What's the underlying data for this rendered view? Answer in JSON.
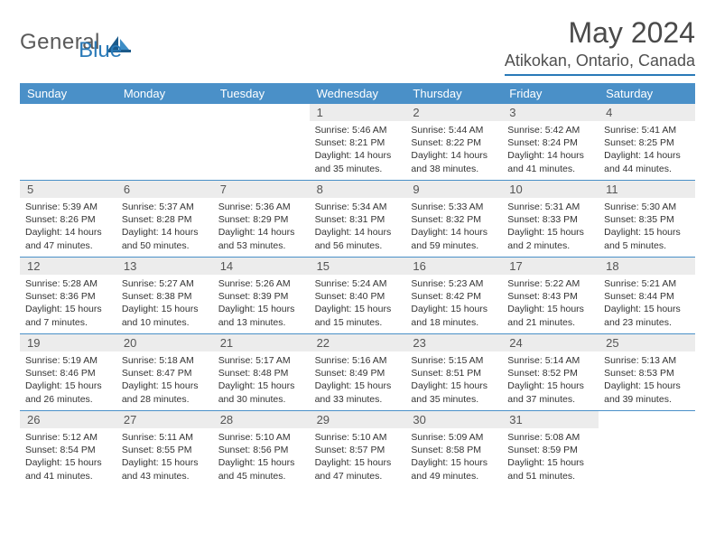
{
  "logo": {
    "text1": "General",
    "text2": "Blue"
  },
  "title": "May 2024",
  "location": "Atikokan, Ontario, Canada",
  "colors": {
    "header_bg": "#4a90c8",
    "header_text": "#ffffff",
    "rule": "#2a7ab8",
    "daynum_bg": "#ececec",
    "text": "#333333"
  },
  "weekdays": [
    "Sunday",
    "Monday",
    "Tuesday",
    "Wednesday",
    "Thursday",
    "Friday",
    "Saturday"
  ],
  "weeks": [
    [
      {
        "n": "",
        "sr": "",
        "ss": "",
        "dl": ""
      },
      {
        "n": "",
        "sr": "",
        "ss": "",
        "dl": ""
      },
      {
        "n": "",
        "sr": "",
        "ss": "",
        "dl": ""
      },
      {
        "n": "1",
        "sr": "Sunrise: 5:46 AM",
        "ss": "Sunset: 8:21 PM",
        "dl": "Daylight: 14 hours and 35 minutes."
      },
      {
        "n": "2",
        "sr": "Sunrise: 5:44 AM",
        "ss": "Sunset: 8:22 PM",
        "dl": "Daylight: 14 hours and 38 minutes."
      },
      {
        "n": "3",
        "sr": "Sunrise: 5:42 AM",
        "ss": "Sunset: 8:24 PM",
        "dl": "Daylight: 14 hours and 41 minutes."
      },
      {
        "n": "4",
        "sr": "Sunrise: 5:41 AM",
        "ss": "Sunset: 8:25 PM",
        "dl": "Daylight: 14 hours and 44 minutes."
      }
    ],
    [
      {
        "n": "5",
        "sr": "Sunrise: 5:39 AM",
        "ss": "Sunset: 8:26 PM",
        "dl": "Daylight: 14 hours and 47 minutes."
      },
      {
        "n": "6",
        "sr": "Sunrise: 5:37 AM",
        "ss": "Sunset: 8:28 PM",
        "dl": "Daylight: 14 hours and 50 minutes."
      },
      {
        "n": "7",
        "sr": "Sunrise: 5:36 AM",
        "ss": "Sunset: 8:29 PM",
        "dl": "Daylight: 14 hours and 53 minutes."
      },
      {
        "n": "8",
        "sr": "Sunrise: 5:34 AM",
        "ss": "Sunset: 8:31 PM",
        "dl": "Daylight: 14 hours and 56 minutes."
      },
      {
        "n": "9",
        "sr": "Sunrise: 5:33 AM",
        "ss": "Sunset: 8:32 PM",
        "dl": "Daylight: 14 hours and 59 minutes."
      },
      {
        "n": "10",
        "sr": "Sunrise: 5:31 AM",
        "ss": "Sunset: 8:33 PM",
        "dl": "Daylight: 15 hours and 2 minutes."
      },
      {
        "n": "11",
        "sr": "Sunrise: 5:30 AM",
        "ss": "Sunset: 8:35 PM",
        "dl": "Daylight: 15 hours and 5 minutes."
      }
    ],
    [
      {
        "n": "12",
        "sr": "Sunrise: 5:28 AM",
        "ss": "Sunset: 8:36 PM",
        "dl": "Daylight: 15 hours and 7 minutes."
      },
      {
        "n": "13",
        "sr": "Sunrise: 5:27 AM",
        "ss": "Sunset: 8:38 PM",
        "dl": "Daylight: 15 hours and 10 minutes."
      },
      {
        "n": "14",
        "sr": "Sunrise: 5:26 AM",
        "ss": "Sunset: 8:39 PM",
        "dl": "Daylight: 15 hours and 13 minutes."
      },
      {
        "n": "15",
        "sr": "Sunrise: 5:24 AM",
        "ss": "Sunset: 8:40 PM",
        "dl": "Daylight: 15 hours and 15 minutes."
      },
      {
        "n": "16",
        "sr": "Sunrise: 5:23 AM",
        "ss": "Sunset: 8:42 PM",
        "dl": "Daylight: 15 hours and 18 minutes."
      },
      {
        "n": "17",
        "sr": "Sunrise: 5:22 AM",
        "ss": "Sunset: 8:43 PM",
        "dl": "Daylight: 15 hours and 21 minutes."
      },
      {
        "n": "18",
        "sr": "Sunrise: 5:21 AM",
        "ss": "Sunset: 8:44 PM",
        "dl": "Daylight: 15 hours and 23 minutes."
      }
    ],
    [
      {
        "n": "19",
        "sr": "Sunrise: 5:19 AM",
        "ss": "Sunset: 8:46 PM",
        "dl": "Daylight: 15 hours and 26 minutes."
      },
      {
        "n": "20",
        "sr": "Sunrise: 5:18 AM",
        "ss": "Sunset: 8:47 PM",
        "dl": "Daylight: 15 hours and 28 minutes."
      },
      {
        "n": "21",
        "sr": "Sunrise: 5:17 AM",
        "ss": "Sunset: 8:48 PM",
        "dl": "Daylight: 15 hours and 30 minutes."
      },
      {
        "n": "22",
        "sr": "Sunrise: 5:16 AM",
        "ss": "Sunset: 8:49 PM",
        "dl": "Daylight: 15 hours and 33 minutes."
      },
      {
        "n": "23",
        "sr": "Sunrise: 5:15 AM",
        "ss": "Sunset: 8:51 PM",
        "dl": "Daylight: 15 hours and 35 minutes."
      },
      {
        "n": "24",
        "sr": "Sunrise: 5:14 AM",
        "ss": "Sunset: 8:52 PM",
        "dl": "Daylight: 15 hours and 37 minutes."
      },
      {
        "n": "25",
        "sr": "Sunrise: 5:13 AM",
        "ss": "Sunset: 8:53 PM",
        "dl": "Daylight: 15 hours and 39 minutes."
      }
    ],
    [
      {
        "n": "26",
        "sr": "Sunrise: 5:12 AM",
        "ss": "Sunset: 8:54 PM",
        "dl": "Daylight: 15 hours and 41 minutes."
      },
      {
        "n": "27",
        "sr": "Sunrise: 5:11 AM",
        "ss": "Sunset: 8:55 PM",
        "dl": "Daylight: 15 hours and 43 minutes."
      },
      {
        "n": "28",
        "sr": "Sunrise: 5:10 AM",
        "ss": "Sunset: 8:56 PM",
        "dl": "Daylight: 15 hours and 45 minutes."
      },
      {
        "n": "29",
        "sr": "Sunrise: 5:10 AM",
        "ss": "Sunset: 8:57 PM",
        "dl": "Daylight: 15 hours and 47 minutes."
      },
      {
        "n": "30",
        "sr": "Sunrise: 5:09 AM",
        "ss": "Sunset: 8:58 PM",
        "dl": "Daylight: 15 hours and 49 minutes."
      },
      {
        "n": "31",
        "sr": "Sunrise: 5:08 AM",
        "ss": "Sunset: 8:59 PM",
        "dl": "Daylight: 15 hours and 51 minutes."
      },
      {
        "n": "",
        "sr": "",
        "ss": "",
        "dl": ""
      }
    ]
  ]
}
